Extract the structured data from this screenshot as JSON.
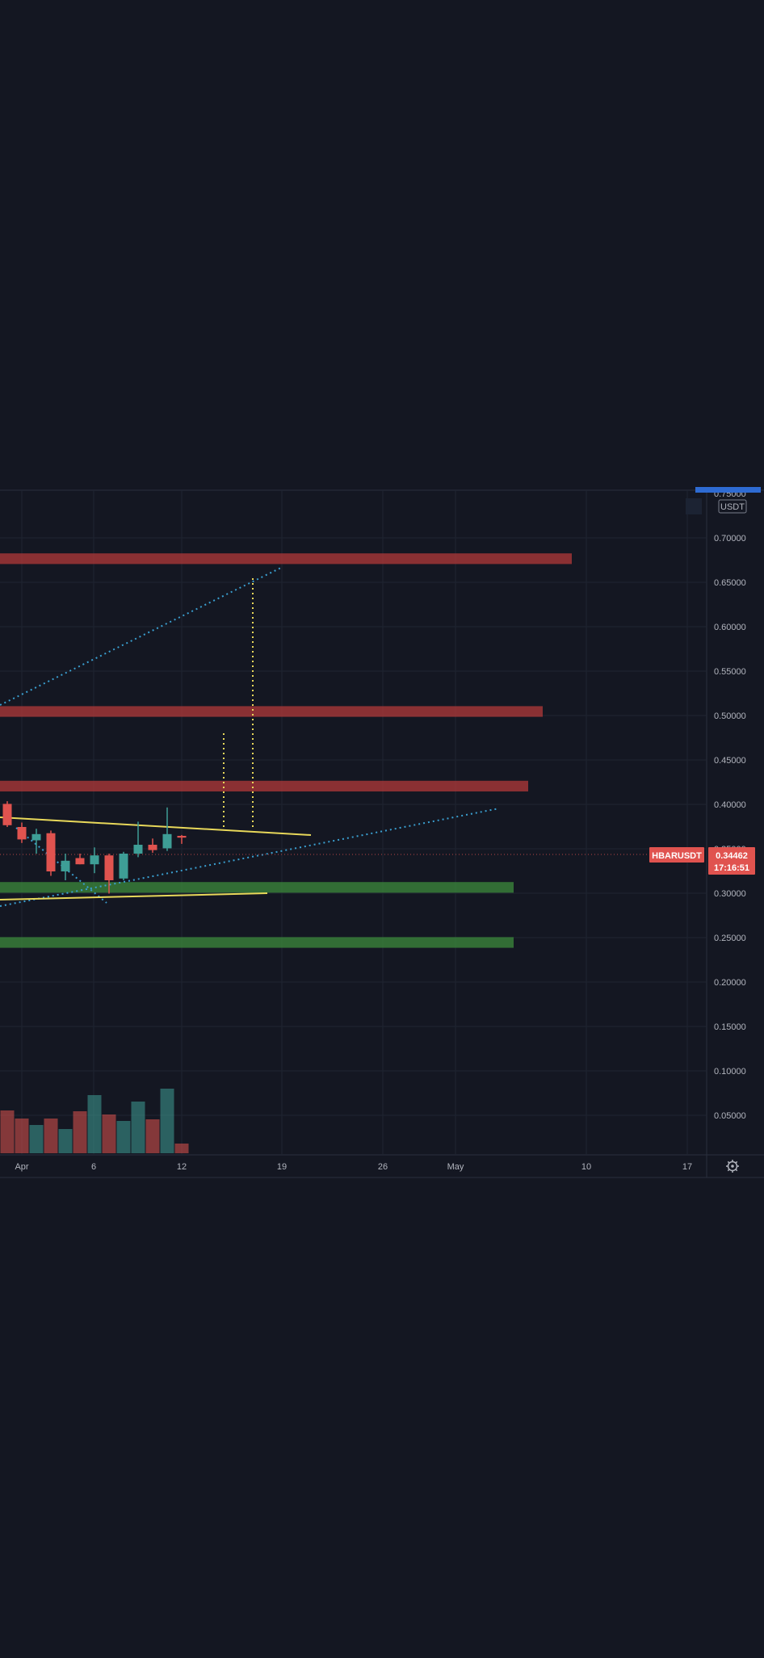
{
  "symbol_tag": "HBARUSDT",
  "price_tag": {
    "price": "0.34462",
    "countdown": "17:16:51",
    "value": 0.34462
  },
  "colors": {
    "background": "#141722",
    "grid": "#1f2431",
    "axis_text": "#b2b5be",
    "up": "#3e9e96",
    "down": "#e0534f",
    "resistance_zone": "#b13a3a",
    "support_zone": "#3c8b3c",
    "trendline_yellow": "#e8d85a",
    "trendline_dotted_blue": "#3a9fd0",
    "price_tag": "#e0534f",
    "accent": "#2e6bd3"
  },
  "chart_data": {
    "type": "candlestick",
    "currency": "USDT",
    "price_axis_ticks": [
      "0.75000",
      "0.70000",
      "0.65000",
      "0.60000",
      "0.55000",
      "0.50000",
      "0.45000",
      "0.40000",
      "0.35000",
      "0.30000",
      "0.25000",
      "0.20000",
      "0.15000",
      "0.10000",
      "0.05000"
    ],
    "time_axis_ticks": [
      "Apr",
      "6",
      "12",
      "19",
      "26",
      "May",
      "10",
      "17"
    ],
    "ylim": [
      0.0,
      0.755
    ],
    "grid": true,
    "candles": [
      {
        "o": 0.386,
        "h": 0.389,
        "l": 0.36,
        "c": 0.362,
        "dir": "down"
      },
      {
        "o": 0.36,
        "h": 0.365,
        "l": 0.342,
        "c": 0.346,
        "dir": "down"
      },
      {
        "o": 0.345,
        "h": 0.358,
        "l": 0.33,
        "c": 0.352,
        "dir": "up"
      },
      {
        "o": 0.353,
        "h": 0.356,
        "l": 0.305,
        "c": 0.31,
        "dir": "down"
      },
      {
        "o": 0.31,
        "h": 0.33,
        "l": 0.3,
        "c": 0.322,
        "dir": "up"
      },
      {
        "o": 0.325,
        "h": 0.33,
        "l": 0.318,
        "c": 0.318,
        "dir": "down"
      },
      {
        "o": 0.318,
        "h": 0.337,
        "l": 0.308,
        "c": 0.328,
        "dir": "up"
      },
      {
        "o": 0.328,
        "h": 0.33,
        "l": 0.285,
        "c": 0.3,
        "dir": "down"
      },
      {
        "o": 0.302,
        "h": 0.332,
        "l": 0.3,
        "c": 0.33,
        "dir": "up"
      },
      {
        "o": 0.33,
        "h": 0.366,
        "l": 0.326,
        "c": 0.34,
        "dir": "up"
      },
      {
        "o": 0.34,
        "h": 0.347,
        "l": 0.331,
        "c": 0.334,
        "dir": "down"
      },
      {
        "o": 0.336,
        "h": 0.382,
        "l": 0.333,
        "c": 0.352,
        "dir": "up"
      },
      {
        "o": 0.35,
        "h": 0.351,
        "l": 0.341,
        "c": 0.348,
        "dir": "down"
      }
    ],
    "volume_relative": [
      0.53,
      0.43,
      0.35,
      0.43,
      0.3,
      0.52,
      0.72,
      0.48,
      0.4,
      0.64,
      0.42,
      0.8,
      0.12
    ],
    "zones": [
      {
        "kind": "resistance",
        "top": 0.668,
        "bottom": 0.656
      },
      {
        "kind": "resistance",
        "top": 0.496,
        "bottom": 0.484
      },
      {
        "kind": "resistance",
        "top": 0.412,
        "bottom": 0.4
      },
      {
        "kind": "support",
        "top": 0.298,
        "bottom": 0.286
      },
      {
        "kind": "support",
        "top": 0.236,
        "bottom": 0.224
      }
    ]
  }
}
